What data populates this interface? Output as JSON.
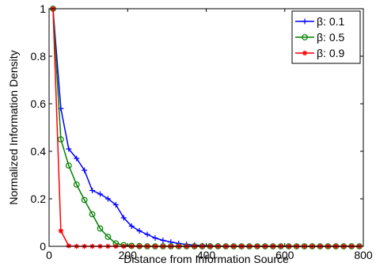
{
  "chart_data": {
    "type": "line",
    "title": "",
    "xlabel": "Distance from Information Source",
    "ylabel": "Normalized Information Density",
    "xlim": [
      0,
      800
    ],
    "ylim": [
      0,
      1
    ],
    "xticks": [
      0,
      200,
      400,
      600,
      800
    ],
    "yticks": [
      0,
      0.2,
      0.4,
      0.6,
      0.8,
      1
    ],
    "xtick_labels": [
      "0",
      "200",
      "400",
      "600",
      "800"
    ],
    "ytick_labels": [
      "0",
      "0.2",
      "0.4",
      "0.6",
      "0.8",
      "1"
    ],
    "grid": false,
    "legend_position": "top-right",
    "x": [
      10,
      30,
      50,
      70,
      90,
      110,
      130,
      150,
      170,
      190,
      210,
      230,
      250,
      270,
      290,
      310,
      330,
      350,
      370,
      390,
      410,
      430,
      450,
      470,
      490,
      510,
      530,
      550,
      570,
      590,
      610,
      630,
      650,
      670,
      690,
      710,
      730,
      750,
      770,
      790
    ],
    "series": [
      {
        "name": "β: 0.1",
        "color": "#0000ff",
        "marker": "plus",
        "values": [
          1.0,
          0.58,
          0.41,
          0.37,
          0.32,
          0.235,
          0.22,
          0.2,
          0.175,
          0.12,
          0.085,
          0.065,
          0.05,
          0.035,
          0.025,
          0.018,
          0.012,
          0.008,
          0.005,
          0.003,
          0.002,
          0.001,
          0,
          0,
          0,
          0,
          0,
          0,
          0,
          0,
          0,
          0,
          0,
          0,
          0,
          0,
          0,
          0,
          0,
          0
        ]
      },
      {
        "name": "β: 0.5",
        "color": "#008000",
        "marker": "circle",
        "values": [
          1.0,
          0.45,
          0.34,
          0.26,
          0.195,
          0.135,
          0.075,
          0.04,
          0.012,
          0.005,
          0.002,
          0.001,
          0,
          0,
          0,
          0,
          0,
          0,
          0,
          0,
          0,
          0,
          0,
          0,
          0,
          0,
          0,
          0,
          0,
          0,
          0,
          0,
          0,
          0,
          0,
          0,
          0,
          0,
          0,
          0
        ]
      },
      {
        "name": "β: 0.9",
        "color": "#ff0000",
        "marker": "asterisk",
        "values": [
          1.0,
          0.065,
          0.002,
          0,
          0,
          0,
          0,
          0,
          0,
          0,
          0,
          0,
          0,
          0,
          0,
          0,
          0,
          0,
          0,
          0,
          0,
          0,
          0,
          0,
          0,
          0,
          0,
          0,
          0,
          0,
          0,
          0,
          0,
          0,
          0,
          0,
          0,
          0,
          0,
          0
        ]
      }
    ]
  }
}
